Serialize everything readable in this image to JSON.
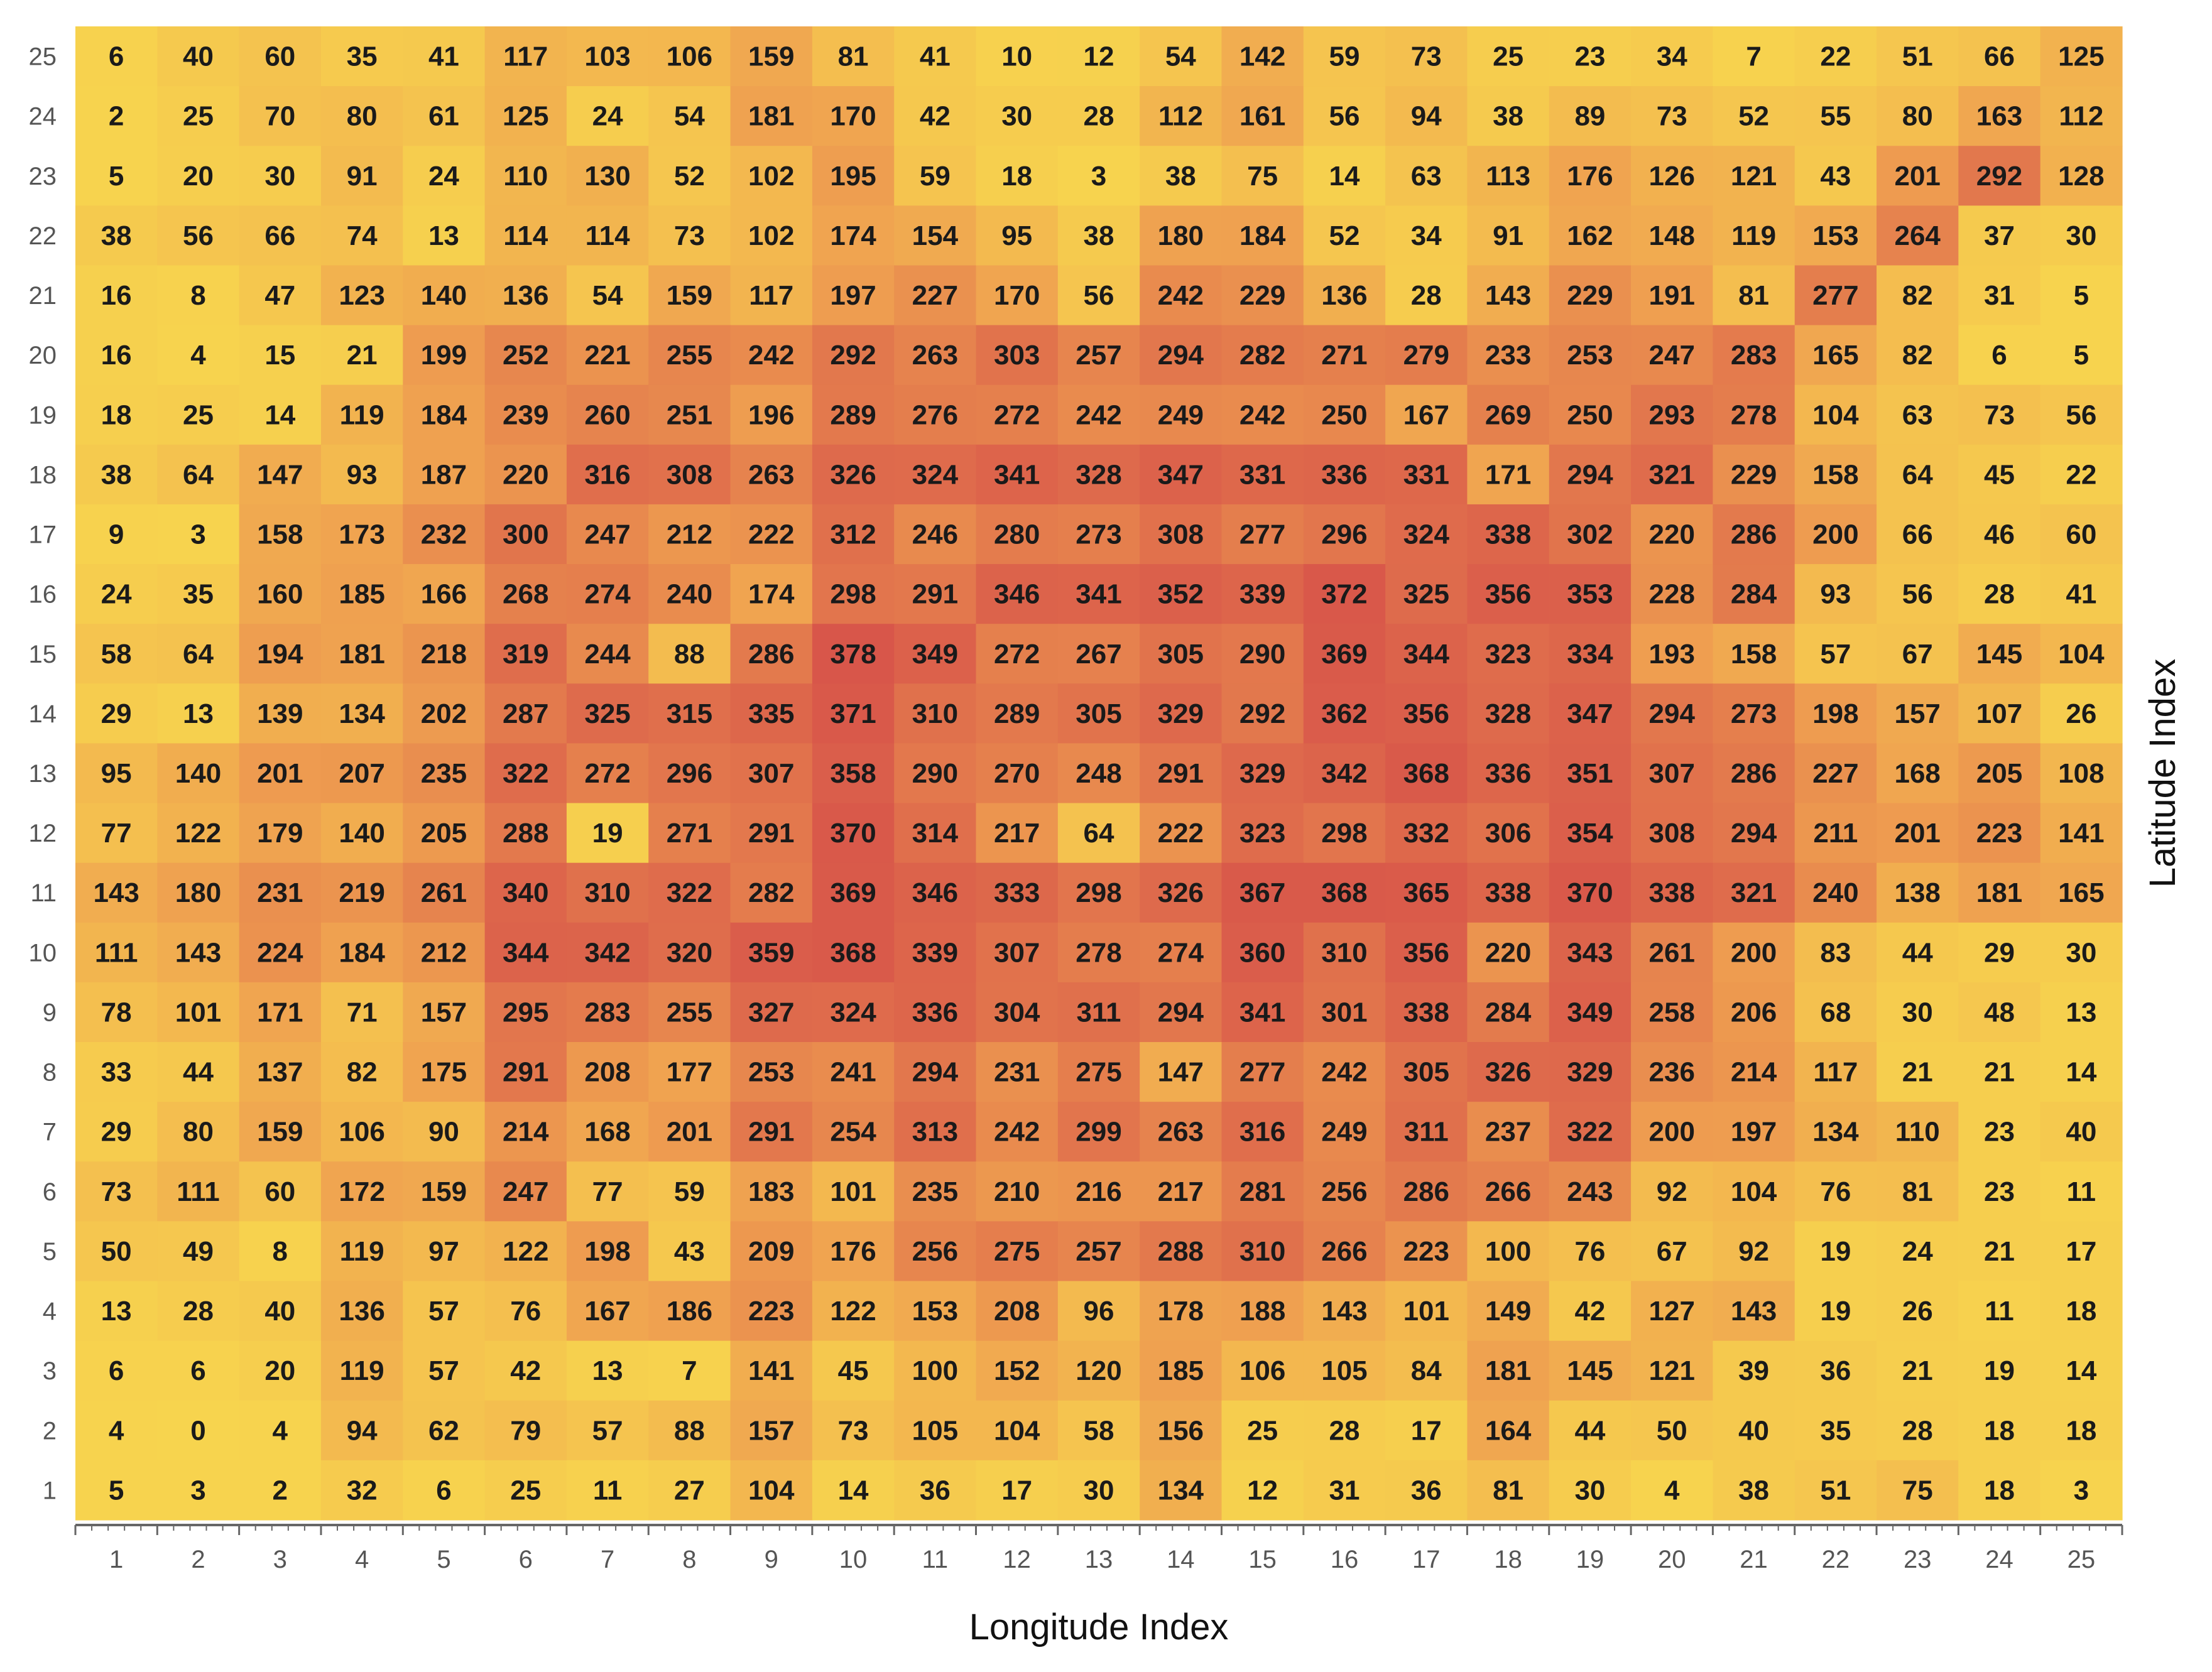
{
  "colors": {
    "low": "#F7D44E",
    "mid": "#EFA050",
    "high": "#D8564A",
    "cell_text": "#1a1a1a",
    "tick_text": "#555555",
    "axis_line": "#666666"
  },
  "chart_data": {
    "type": "heatmap",
    "title": "",
    "xlabel": "Longitude Index",
    "ylabel": "Latitude Index",
    "x_ticks": [
      1,
      2,
      3,
      4,
      5,
      6,
      7,
      8,
      9,
      10,
      11,
      12,
      13,
      14,
      15,
      16,
      17,
      18,
      19,
      20,
      21,
      22,
      23,
      24,
      25
    ],
    "y_ticks": [
      25,
      24,
      23,
      22,
      21,
      20,
      19,
      18,
      17,
      16,
      15,
      14,
      13,
      12,
      11,
      10,
      9,
      8,
      7,
      6,
      5,
      4,
      3,
      2,
      1
    ],
    "value_range": [
      0,
      378
    ],
    "rows": [
      [
        6,
        40,
        60,
        35,
        41,
        117,
        103,
        106,
        159,
        81,
        41,
        10,
        12,
        54,
        142,
        59,
        73,
        25,
        23,
        34,
        7,
        22,
        51,
        66,
        125
      ],
      [
        2,
        25,
        70,
        80,
        61,
        125,
        24,
        54,
        181,
        170,
        42,
        30,
        28,
        112,
        161,
        56,
        94,
        38,
        89,
        73,
        52,
        55,
        80,
        163,
        112
      ],
      [
        5,
        20,
        30,
        91,
        24,
        110,
        130,
        52,
        102,
        195,
        59,
        18,
        3,
        38,
        75,
        14,
        63,
        113,
        176,
        126,
        121,
        43,
        201,
        292,
        128
      ],
      [
        38,
        56,
        66,
        74,
        13,
        114,
        114,
        73,
        102,
        174,
        154,
        95,
        38,
        180,
        184,
        52,
        34,
        91,
        162,
        148,
        119,
        153,
        264,
        37,
        30
      ],
      [
        16,
        8,
        47,
        123,
        140,
        136,
        54,
        159,
        117,
        197,
        227,
        170,
        56,
        242,
        229,
        136,
        28,
        143,
        229,
        191,
        81,
        277,
        82,
        31,
        5
      ],
      [
        16,
        4,
        15,
        21,
        199,
        252,
        221,
        255,
        242,
        292,
        263,
        303,
        257,
        294,
        282,
        271,
        279,
        233,
        253,
        247,
        283,
        165,
        82,
        6,
        5
      ],
      [
        18,
        25,
        14,
        119,
        184,
        239,
        260,
        251,
        196,
        289,
        276,
        272,
        242,
        249,
        242,
        250,
        167,
        269,
        250,
        293,
        278,
        104,
        63,
        73,
        56
      ],
      [
        38,
        64,
        147,
        93,
        187,
        220,
        316,
        308,
        263,
        326,
        324,
        341,
        328,
        347,
        331,
        336,
        331,
        171,
        294,
        321,
        229,
        158,
        64,
        45,
        22
      ],
      [
        9,
        3,
        158,
        173,
        232,
        300,
        247,
        212,
        222,
        312,
        246,
        280,
        273,
        308,
        277,
        296,
        324,
        338,
        302,
        220,
        286,
        200,
        66,
        46,
        60
      ],
      [
        24,
        35,
        160,
        185,
        166,
        268,
        274,
        240,
        174,
        298,
        291,
        346,
        341,
        352,
        339,
        372,
        325,
        356,
        353,
        228,
        284,
        93,
        56,
        28,
        41
      ],
      [
        58,
        64,
        194,
        181,
        218,
        319,
        244,
        88,
        286,
        378,
        349,
        272,
        267,
        305,
        290,
        369,
        344,
        323,
        334,
        193,
        158,
        57,
        67,
        145,
        104
      ],
      [
        29,
        13,
        139,
        134,
        202,
        287,
        325,
        315,
        335,
        371,
        310,
        289,
        305,
        329,
        292,
        362,
        356,
        328,
        347,
        294,
        273,
        198,
        157,
        107,
        26
      ],
      [
        95,
        140,
        201,
        207,
        235,
        322,
        272,
        296,
        307,
        358,
        290,
        270,
        248,
        291,
        329,
        342,
        368,
        336,
        351,
        307,
        286,
        227,
        168,
        205,
        108
      ],
      [
        77,
        122,
        179,
        140,
        205,
        288,
        19,
        271,
        291,
        370,
        314,
        217,
        64,
        222,
        323,
        298,
        332,
        306,
        354,
        308,
        294,
        211,
        201,
        223,
        141
      ],
      [
        143,
        180,
        231,
        219,
        261,
        340,
        310,
        322,
        282,
        369,
        346,
        333,
        298,
        326,
        367,
        368,
        365,
        338,
        370,
        338,
        321,
        240,
        138,
        181,
        165
      ],
      [
        111,
        143,
        224,
        184,
        212,
        344,
        342,
        320,
        359,
        368,
        339,
        307,
        278,
        274,
        360,
        310,
        356,
        220,
        343,
        261,
        200,
        83,
        44,
        29,
        30
      ],
      [
        78,
        101,
        171,
        71,
        157,
        295,
        283,
        255,
        327,
        324,
        336,
        304,
        311,
        294,
        341,
        301,
        338,
        284,
        349,
        258,
        206,
        68,
        30,
        48,
        13
      ],
      [
        33,
        44,
        137,
        82,
        175,
        291,
        208,
        177,
        253,
        241,
        294,
        231,
        275,
        147,
        277,
        242,
        305,
        326,
        329,
        236,
        214,
        117,
        21,
        21,
        14
      ],
      [
        29,
        80,
        159,
        106,
        90,
        214,
        168,
        201,
        291,
        254,
        313,
        242,
        299,
        263,
        316,
        249,
        311,
        237,
        322,
        200,
        197,
        134,
        110,
        23,
        40
      ],
      [
        73,
        111,
        60,
        172,
        159,
        247,
        77,
        59,
        183,
        101,
        235,
        210,
        216,
        217,
        281,
        256,
        286,
        266,
        243,
        92,
        104,
        76,
        81,
        23,
        11
      ],
      [
        50,
        49,
        8,
        119,
        97,
        122,
        198,
        43,
        209,
        176,
        256,
        275,
        257,
        288,
        310,
        266,
        223,
        100,
        76,
        67,
        92,
        19,
        24,
        21,
        17
      ],
      [
        13,
        28,
        40,
        136,
        57,
        76,
        167,
        186,
        223,
        122,
        153,
        208,
        96,
        178,
        188,
        143,
        101,
        149,
        42,
        127,
        143,
        19,
        26,
        11,
        18
      ],
      [
        6,
        6,
        20,
        119,
        57,
        42,
        13,
        7,
        141,
        45,
        100,
        152,
        120,
        185,
        106,
        105,
        84,
        181,
        145,
        121,
        39,
        36,
        21,
        19,
        14
      ],
      [
        4,
        0,
        4,
        94,
        62,
        79,
        57,
        88,
        157,
        73,
        105,
        104,
        58,
        156,
        25,
        28,
        17,
        164,
        44,
        50,
        40,
        35,
        28,
        18,
        18
      ],
      [
        5,
        3,
        2,
        32,
        6,
        25,
        11,
        27,
        104,
        14,
        36,
        17,
        30,
        134,
        12,
        31,
        36,
        81,
        30,
        4,
        38,
        51,
        75,
        18,
        3
      ]
    ]
  }
}
